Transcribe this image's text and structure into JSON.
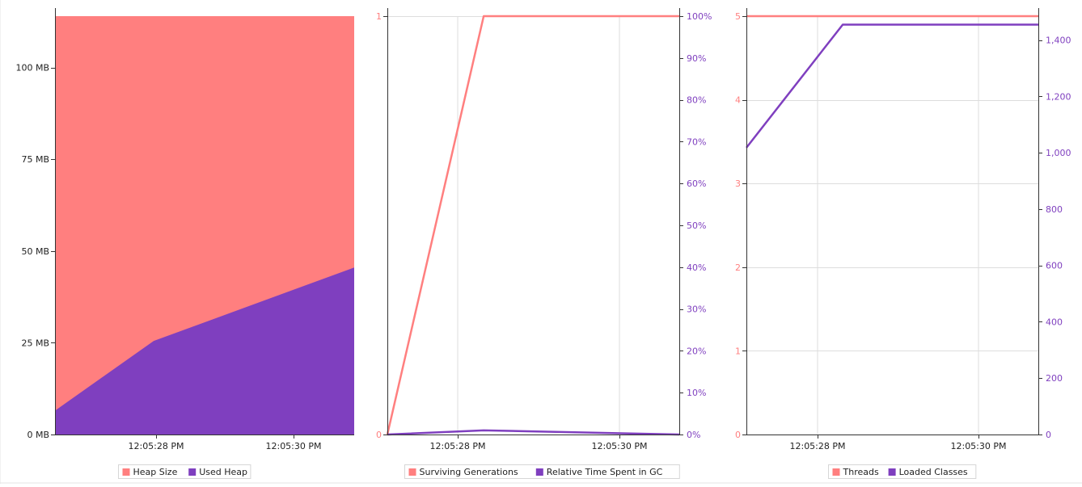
{
  "colors": {
    "salmon": "#ff7f7f",
    "purple": "#7f3fbf",
    "grid": "#dddddd",
    "axis": "#333333"
  },
  "chart_data": [
    {
      "type": "area",
      "x_ticks": [
        "12:05:28 PM",
        "12:05:30 PM"
      ],
      "y_ticks": [
        "0 MB",
        "25 MB",
        "50 MB",
        "75 MB",
        "100 MB"
      ],
      "ylim": [
        0,
        114
      ],
      "y_unit": "MB",
      "grid": true,
      "legend_position": "bottom-center",
      "series": [
        {
          "name": "Heap Size",
          "color": "#ff7f7f",
          "t": [
            0,
            0.33,
            1
          ],
          "values": [
            114,
            114,
            114
          ]
        },
        {
          "name": "Used Heap",
          "color": "#7f3fbf",
          "t": [
            0,
            0.33,
            1
          ],
          "values": [
            6.5,
            25.5,
            45.5
          ]
        }
      ]
    },
    {
      "type": "line",
      "x_ticks": [
        "12:05:28 PM",
        "12:05:30 PM"
      ],
      "y_left_ticks": [
        "0",
        "1"
      ],
      "y_left_lim": [
        0,
        1
      ],
      "y_right_ticks": [
        "0%",
        "10%",
        "20%",
        "30%",
        "40%",
        "50%",
        "60%",
        "70%",
        "80%",
        "90%",
        "100%"
      ],
      "y_right_lim": [
        0,
        100
      ],
      "grid": true,
      "legend_position": "bottom-center",
      "series": [
        {
          "name": "Surviving Generations",
          "color": "#ff7f7f",
          "axis": "left",
          "t": [
            0,
            0.33,
            1
          ],
          "values": [
            0,
            1,
            1
          ]
        },
        {
          "name": "Relative Time Spent in GC",
          "color": "#7f3fbf",
          "axis": "right",
          "t": [
            0,
            0.33,
            1
          ],
          "values": [
            0,
            1,
            0
          ]
        }
      ]
    },
    {
      "type": "line",
      "x_ticks": [
        "12:05:28 PM",
        "12:05:30 PM"
      ],
      "y_left_ticks": [
        "0",
        "1",
        "2",
        "3",
        "4",
        "5"
      ],
      "y_left_lim": [
        0,
        5
      ],
      "y_right_ticks": [
        "0",
        "200",
        "400",
        "600",
        "800",
        "1,000",
        "1,200",
        "1,400"
      ],
      "y_right_lim": [
        0,
        1485
      ],
      "grid": true,
      "legend_position": "bottom-center",
      "series": [
        {
          "name": "Threads",
          "color": "#ff7f7f",
          "axis": "left",
          "t": [
            0,
            0.33,
            1
          ],
          "values": [
            5,
            5,
            5
          ]
        },
        {
          "name": "Loaded Classes",
          "color": "#7f3fbf",
          "axis": "right",
          "t": [
            0,
            0.33,
            1
          ],
          "values": [
            1018,
            1455,
            1455
          ]
        }
      ]
    }
  ]
}
